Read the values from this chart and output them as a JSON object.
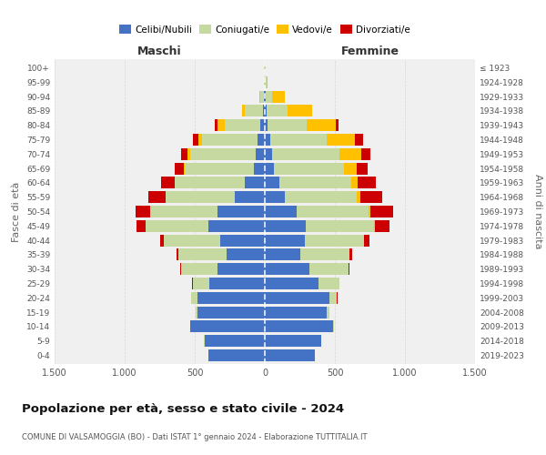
{
  "age_groups": [
    "100+",
    "95-99",
    "90-94",
    "85-89",
    "80-84",
    "75-79",
    "70-74",
    "65-69",
    "60-64",
    "55-59",
    "50-54",
    "45-49",
    "40-44",
    "35-39",
    "30-34",
    "25-29",
    "20-24",
    "15-19",
    "10-14",
    "5-9",
    "0-4"
  ],
  "birth_years": [
    "≤ 1923",
    "1924-1928",
    "1929-1933",
    "1934-1938",
    "1939-1943",
    "1944-1948",
    "1949-1953",
    "1954-1958",
    "1959-1963",
    "1964-1968",
    "1969-1973",
    "1974-1978",
    "1979-1983",
    "1984-1988",
    "1989-1993",
    "1994-1998",
    "1999-2003",
    "2004-2008",
    "2009-2013",
    "2014-2018",
    "2019-2023"
  ],
  "male_celibi": [
    2,
    2,
    5,
    10,
    30,
    55,
    65,
    80,
    140,
    215,
    340,
    400,
    320,
    275,
    340,
    395,
    480,
    480,
    530,
    430,
    400
  ],
  "male_coniugati": [
    2,
    5,
    30,
    130,
    255,
    390,
    465,
    490,
    500,
    490,
    475,
    450,
    400,
    340,
    255,
    120,
    45,
    12,
    5,
    2,
    0
  ],
  "male_vedovi": [
    0,
    0,
    5,
    20,
    55,
    30,
    20,
    10,
    5,
    2,
    5,
    2,
    0,
    0,
    0,
    0,
    0,
    0,
    0,
    0,
    0
  ],
  "male_divorziati": [
    0,
    0,
    2,
    5,
    15,
    35,
    45,
    65,
    95,
    125,
    105,
    65,
    30,
    12,
    10,
    5,
    2,
    0,
    0,
    0,
    0
  ],
  "female_nubili": [
    2,
    2,
    5,
    10,
    20,
    40,
    55,
    65,
    105,
    145,
    230,
    290,
    285,
    255,
    315,
    385,
    460,
    440,
    490,
    400,
    355
  ],
  "female_coniugate": [
    2,
    10,
    50,
    150,
    280,
    400,
    480,
    500,
    510,
    510,
    510,
    490,
    420,
    350,
    280,
    145,
    55,
    18,
    5,
    2,
    0
  ],
  "female_vedove": [
    2,
    10,
    85,
    175,
    205,
    205,
    155,
    90,
    50,
    30,
    10,
    5,
    2,
    0,
    0,
    0,
    0,
    0,
    0,
    0,
    0
  ],
  "female_divorziate": [
    0,
    0,
    2,
    5,
    20,
    55,
    65,
    80,
    125,
    155,
    165,
    105,
    40,
    20,
    10,
    5,
    2,
    0,
    0,
    0,
    0
  ],
  "colors": {
    "celibi": "#4472c4",
    "coniugati": "#c5d9a0",
    "vedovi": "#ffc000",
    "divorziati": "#cc0000"
  },
  "xlim": 1500,
  "title": "Popolazione per età, sesso e stato civile - 2024",
  "subtitle": "COMUNE DI VALSAMOGGIA (BO) - Dati ISTAT 1° gennaio 2024 - Elaborazione TUTTITALIA.IT",
  "ylabel_left": "Fasce di età",
  "ylabel_right": "Anni di nascita",
  "bg_color": "#ffffff",
  "plot_bg": "#f0f0f0"
}
